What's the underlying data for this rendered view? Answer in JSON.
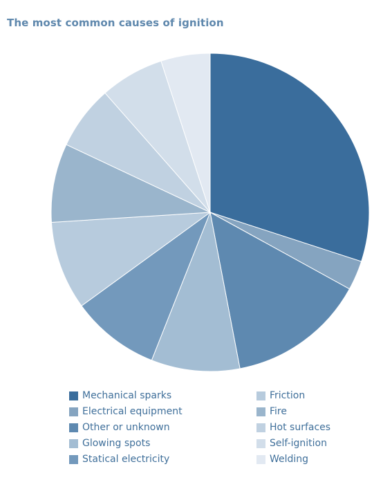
{
  "chart_data": {
    "type": "pie",
    "title": "The most common causes of ignition",
    "start_angle_deg": 0,
    "direction": "clockwise",
    "legend_position": "bottom",
    "categories": [
      "Mechanical sparks",
      "Electrical equipment",
      "Other or unknown",
      "Glowing spots",
      "Statical electricity",
      "Friction",
      "Fire",
      "Hot surfaces",
      "Self-ignition",
      "Welding"
    ],
    "values": [
      30,
      3,
      14,
      9,
      9,
      9,
      8,
      6.5,
      6.5,
      5
    ],
    "colors": [
      "#3a6d9c",
      "#85a4c0",
      "#5e89b0",
      "#a3bdd3",
      "#7399bc",
      "#b7cbdd",
      "#9ab5cc",
      "#c0d1e1",
      "#d2deea",
      "#e2e9f2"
    ]
  }
}
